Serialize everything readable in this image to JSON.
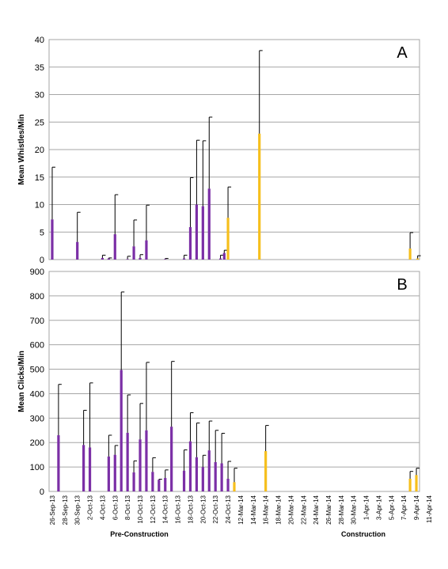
{
  "colors": {
    "pre": "#7b2fa6",
    "construction": "#f6bf1c",
    "grid": "#a6a6a6",
    "error": "#000000"
  },
  "x_labels": [
    "26-Sep-13",
    "28-Sep-13",
    "30-Sep-13",
    "2-Oct-13",
    "4-Oct-13",
    "6-Oct-13",
    "8-Oct-13",
    "10-Oct-13",
    "12-Oct-13",
    "14-Oct-13",
    "16-Oct-13",
    "18-Oct-13",
    "20-Oct-13",
    "22-Oct-13",
    "24-Oct-13",
    "12-Mar-14",
    "14-Mar-14",
    "16-Mar-14",
    "18-Mar-14",
    "20-Mar-14",
    "22-Mar-14",
    "24-Mar-14",
    "26-Mar-14",
    "28-Mar-14",
    "30-Mar-14",
    "1-Apr-14",
    "3-Apr-14",
    "5-Apr-14",
    "7-Apr-14",
    "9-Apr-14",
    "11-Apr-14"
  ],
  "phase_labels": {
    "pre": "Pre-Construction",
    "construction": "Construction"
  },
  "chart_data": [
    {
      "type": "bar",
      "panel_label": "A",
      "ylabel": "Mean Whistles/Min",
      "ylim": [
        0,
        40
      ],
      "yticks": [
        0,
        5,
        10,
        15,
        20,
        25,
        30,
        35,
        40
      ],
      "grid": true,
      "bars": [
        {
          "pos": 0,
          "value": 7.3,
          "error": 16.8,
          "phase": "pre"
        },
        {
          "pos": 4,
          "value": 3.2,
          "error": 8.6,
          "phase": "pre"
        },
        {
          "pos": 8,
          "value": 0.3,
          "error": 0.8,
          "phase": "pre"
        },
        {
          "pos": 9,
          "value": 0.2,
          "error": 0.3,
          "phase": "pre"
        },
        {
          "pos": 10,
          "value": 4.6,
          "error": 11.8,
          "phase": "pre"
        },
        {
          "pos": 12,
          "value": 0.1,
          "error": 0.6,
          "phase": "pre"
        },
        {
          "pos": 13,
          "value": 2.4,
          "error": 7.2,
          "phase": "pre"
        },
        {
          "pos": 14,
          "value": 0.3,
          "error": 0.9,
          "phase": "pre"
        },
        {
          "pos": 15,
          "value": 3.5,
          "error": 9.9,
          "phase": "pre"
        },
        {
          "pos": 18,
          "value": 0.1,
          "error": 0.2,
          "phase": "pre"
        },
        {
          "pos": 21,
          "value": 0.2,
          "error": 0.8,
          "phase": "pre"
        },
        {
          "pos": 22,
          "value": 5.9,
          "error": 14.9,
          "phase": "pre"
        },
        {
          "pos": 23,
          "value": 10.0,
          "error": 21.7,
          "phase": "pre"
        },
        {
          "pos": 24,
          "value": 9.7,
          "error": 21.6,
          "phase": "pre"
        },
        {
          "pos": 25,
          "value": 12.9,
          "error": 25.9,
          "phase": "pre"
        },
        {
          "pos": 26.8,
          "value": 0.2,
          "error": 0.8,
          "phase": "pre"
        },
        {
          "pos": 27.4,
          "value": 1.2,
          "error": 1.7,
          "phase": "pre"
        },
        {
          "pos": 28,
          "value": 7.6,
          "error": 13.2,
          "phase": "construction"
        },
        {
          "pos": 33,
          "value": 22.9,
          "error": 38.0,
          "phase": "construction"
        },
        {
          "pos": 57,
          "value": 2.0,
          "error": 4.9,
          "phase": "construction"
        },
        {
          "pos": 58.2,
          "value": 0.2,
          "error": 0.7,
          "phase": "construction"
        }
      ]
    },
    {
      "type": "bar",
      "panel_label": "B",
      "ylabel": "Mean Clicks/Min",
      "ylim": [
        0,
        900
      ],
      "yticks": [
        0,
        100,
        200,
        300,
        400,
        500,
        600,
        700,
        800,
        900
      ],
      "grid": true,
      "bars": [
        {
          "pos": 1,
          "value": 230,
          "error": 438,
          "phase": "pre"
        },
        {
          "pos": 5,
          "value": 190,
          "error": 332,
          "phase": "pre"
        },
        {
          "pos": 6,
          "value": 180,
          "error": 444,
          "phase": "pre"
        },
        {
          "pos": 9,
          "value": 143,
          "error": 230,
          "phase": "pre"
        },
        {
          "pos": 10,
          "value": 150,
          "error": 188,
          "phase": "pre"
        },
        {
          "pos": 11,
          "value": 497,
          "error": 816,
          "phase": "pre"
        },
        {
          "pos": 12,
          "value": 240,
          "error": 395,
          "phase": "pre"
        },
        {
          "pos": 13,
          "value": 78,
          "error": 125,
          "phase": "pre"
        },
        {
          "pos": 14,
          "value": 213,
          "error": 360,
          "phase": "pre"
        },
        {
          "pos": 15,
          "value": 250,
          "error": 528,
          "phase": "pre"
        },
        {
          "pos": 16,
          "value": 80,
          "error": 138,
          "phase": "pre"
        },
        {
          "pos": 17,
          "value": 48,
          "error": 50,
          "phase": "pre"
        },
        {
          "pos": 18,
          "value": 55,
          "error": 88,
          "phase": "pre"
        },
        {
          "pos": 19,
          "value": 265,
          "error": 532,
          "phase": "pre"
        },
        {
          "pos": 21,
          "value": 85,
          "error": 170,
          "phase": "pre"
        },
        {
          "pos": 22,
          "value": 205,
          "error": 322,
          "phase": "pre"
        },
        {
          "pos": 23,
          "value": 140,
          "error": 280,
          "phase": "pre"
        },
        {
          "pos": 24,
          "value": 100,
          "error": 148,
          "phase": "pre"
        },
        {
          "pos": 25,
          "value": 168,
          "error": 288,
          "phase": "pre"
        },
        {
          "pos": 26,
          "value": 120,
          "error": 250,
          "phase": "pre"
        },
        {
          "pos": 27,
          "value": 115,
          "error": 238,
          "phase": "pre"
        },
        {
          "pos": 28,
          "value": 52,
          "error": 123,
          "phase": "pre"
        },
        {
          "pos": 29,
          "value": 38,
          "error": 95,
          "phase": "construction"
        },
        {
          "pos": 34,
          "value": 165,
          "error": 270,
          "phase": "construction"
        },
        {
          "pos": 57,
          "value": 52,
          "error": 82,
          "phase": "construction"
        },
        {
          "pos": 58,
          "value": 67,
          "error": 95,
          "phase": "construction"
        }
      ]
    }
  ]
}
